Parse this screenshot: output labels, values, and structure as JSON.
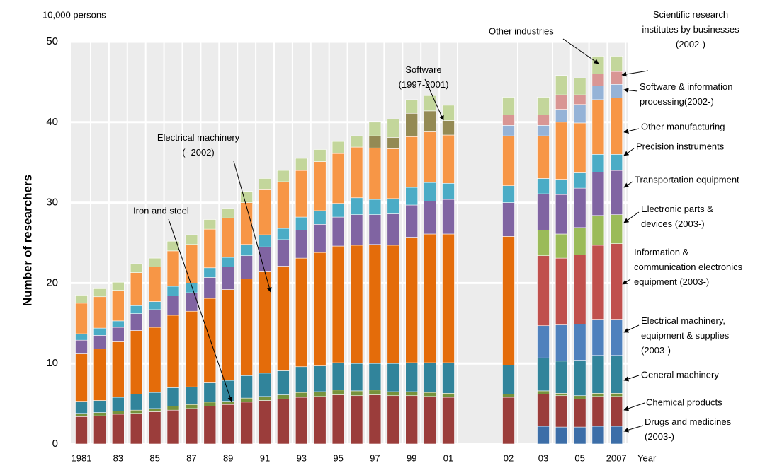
{
  "chart_data": {
    "type": "stacked-bar",
    "unit_label": "10,000 persons",
    "y_label": "Number of researchers",
    "x_label": "Year",
    "categories": [
      "1981",
      null,
      "83",
      null,
      "85",
      null,
      "87",
      null,
      "89",
      null,
      "91",
      null,
      "93",
      null,
      "95",
      null,
      "97",
      null,
      "99",
      null,
      "01",
      "02",
      "03",
      null,
      "05",
      null,
      "2007"
    ],
    "ylim": [
      0,
      50
    ],
    "yticks": [
      0,
      10,
      20,
      30,
      40,
      50
    ],
    "grid": true,
    "series": [
      {
        "name": "Drugs and medicines\n(2003-)",
        "color": "#3c6ea8",
        "values": [
          null,
          null,
          null,
          null,
          null,
          null,
          null,
          null,
          null,
          null,
          null,
          null,
          null,
          null,
          null,
          null,
          null,
          null,
          null,
          null,
          null,
          null,
          2.2,
          2.1,
          2.1,
          2.2,
          2.2
        ]
      },
      {
        "name": "Chemical products",
        "color": "#9b3d3b",
        "values": [
          3.4,
          3.5,
          3.7,
          3.8,
          4.0,
          4.2,
          4.4,
          4.7,
          4.9,
          5.2,
          5.4,
          5.6,
          5.8,
          5.9,
          6.1,
          6.0,
          6.1,
          6.0,
          6.0,
          5.9,
          5.8,
          5.8,
          4.0,
          3.9,
          3.5,
          3.7,
          3.7
        ]
      },
      {
        "name": "Iron and steel",
        "color": "#76923c",
        "values": [
          0.4,
          0.4,
          0.4,
          0.4,
          0.4,
          0.5,
          0.5,
          0.5,
          0.4,
          0.5,
          0.5,
          0.5,
          0.6,
          0.6,
          0.6,
          0.6,
          0.6,
          0.5,
          0.5,
          0.5,
          0.5,
          0.4,
          0.4,
          0.3,
          0.4,
          0.4,
          0.4
        ]
      },
      {
        "name": "General machinery",
        "color": "#31849b",
        "values": [
          1.5,
          1.5,
          1.7,
          2.0,
          2.0,
          2.3,
          2.2,
          2.4,
          2.6,
          2.8,
          2.9,
          3.0,
          3.2,
          3.2,
          3.4,
          3.4,
          3.3,
          3.5,
          3.6,
          3.7,
          3.8,
          3.6,
          4.1,
          4.0,
          4.4,
          4.7,
          4.7
        ]
      },
      {
        "name": "Electrical machinery,\nequipment & supplies\n(2003-)",
        "color": "#4f81bd",
        "values": [
          null,
          null,
          null,
          null,
          null,
          null,
          null,
          null,
          null,
          null,
          null,
          null,
          null,
          null,
          null,
          null,
          null,
          null,
          null,
          null,
          null,
          null,
          4.0,
          4.5,
          4.5,
          4.5,
          4.5
        ]
      },
      {
        "name": "Information &\ncommunication electronics\nequipment (2003-)",
        "color": "#c0504d",
        "values": [
          null,
          null,
          null,
          null,
          null,
          null,
          null,
          null,
          null,
          null,
          null,
          null,
          null,
          null,
          null,
          null,
          null,
          null,
          null,
          null,
          null,
          null,
          8.7,
          8.3,
          8.6,
          9.2,
          9.4
        ]
      },
      {
        "name": "Electronic parts &\ndevices (2003-)",
        "color": "#9bbb59",
        "values": [
          null,
          null,
          null,
          null,
          null,
          null,
          null,
          null,
          null,
          null,
          null,
          null,
          null,
          null,
          null,
          null,
          null,
          null,
          null,
          null,
          null,
          null,
          3.2,
          3.0,
          3.4,
          3.7,
          3.6
        ]
      },
      {
        "name": "Electrical machinery\n(- 2002)",
        "color": "#e46c0a",
        "values": [
          5.9,
          6.4,
          6.9,
          7.9,
          8.1,
          9.0,
          9.4,
          10.5,
          11.3,
          12.0,
          12.6,
          13.0,
          13.5,
          14.1,
          14.5,
          14.7,
          14.8,
          14.7,
          15.6,
          16.0,
          16.0,
          16.0,
          null,
          null,
          null,
          null,
          null
        ]
      },
      {
        "name": "Transportation equipment",
        "color": "#8064a2",
        "values": [
          1.7,
          1.7,
          1.8,
          2.1,
          2.2,
          2.4,
          2.3,
          2.6,
          2.8,
          2.9,
          3.1,
          3.3,
          3.5,
          3.5,
          3.6,
          3.8,
          3.7,
          3.9,
          4.0,
          4.1,
          4.3,
          4.2,
          4.5,
          4.9,
          4.9,
          5.4,
          5.5
        ]
      },
      {
        "name": "Precision instruments",
        "color": "#4bacc6",
        "values": [
          0.8,
          0.9,
          0.8,
          1.0,
          1.0,
          1.2,
          1.2,
          1.2,
          1.2,
          1.4,
          1.5,
          1.4,
          1.6,
          1.7,
          1.7,
          2.1,
          1.9,
          1.9,
          2.2,
          2.3,
          2.0,
          2.1,
          1.9,
          1.9,
          1.9,
          2.2,
          2.0
        ]
      },
      {
        "name": "Other manufacturing",
        "color": "#f79646",
        "values": [
          3.8,
          3.9,
          3.8,
          4.1,
          4.3,
          4.4,
          4.8,
          4.8,
          4.9,
          5.2,
          5.6,
          5.8,
          5.8,
          6.1,
          6.2,
          6.3,
          6.4,
          6.2,
          6.3,
          6.3,
          6.0,
          6.2,
          5.3,
          7.1,
          6.2,
          6.8,
          7.0
        ]
      },
      {
        "name": "Software\n(1997-2001)",
        "color": "#948a54",
        "values": [
          null,
          null,
          null,
          null,
          null,
          null,
          null,
          null,
          null,
          null,
          null,
          null,
          null,
          null,
          null,
          null,
          1.5,
          1.4,
          2.9,
          2.6,
          1.8,
          null,
          null,
          null,
          null,
          null,
          null
        ]
      },
      {
        "name": "Software & information\nprocessing(2002-)",
        "color": "#95b3d7",
        "values": [
          null,
          null,
          null,
          null,
          null,
          null,
          null,
          null,
          null,
          null,
          null,
          null,
          null,
          null,
          null,
          null,
          null,
          null,
          null,
          null,
          null,
          1.3,
          1.3,
          1.6,
          2.3,
          1.7,
          1.7
        ]
      },
      {
        "name": "Scientific research\ninstitutes by businesses\n(2002-)",
        "color": "#d99694",
        "values": [
          null,
          null,
          null,
          null,
          null,
          null,
          null,
          null,
          null,
          null,
          null,
          null,
          null,
          null,
          null,
          null,
          null,
          null,
          null,
          null,
          null,
          1.3,
          1.3,
          1.8,
          1.2,
          1.5,
          1.6
        ]
      },
      {
        "name": "Other industries",
        "color": "#c3d69b",
        "values": [
          1.0,
          1.0,
          1.0,
          1.1,
          1.1,
          1.2,
          1.2,
          1.2,
          1.2,
          1.4,
          1.4,
          1.4,
          1.5,
          1.5,
          1.5,
          1.4,
          1.7,
          2.3,
          1.7,
          1.9,
          1.9,
          2.2,
          2.2,
          2.4,
          2.1,
          2.2,
          1.9
        ]
      }
    ]
  }
}
